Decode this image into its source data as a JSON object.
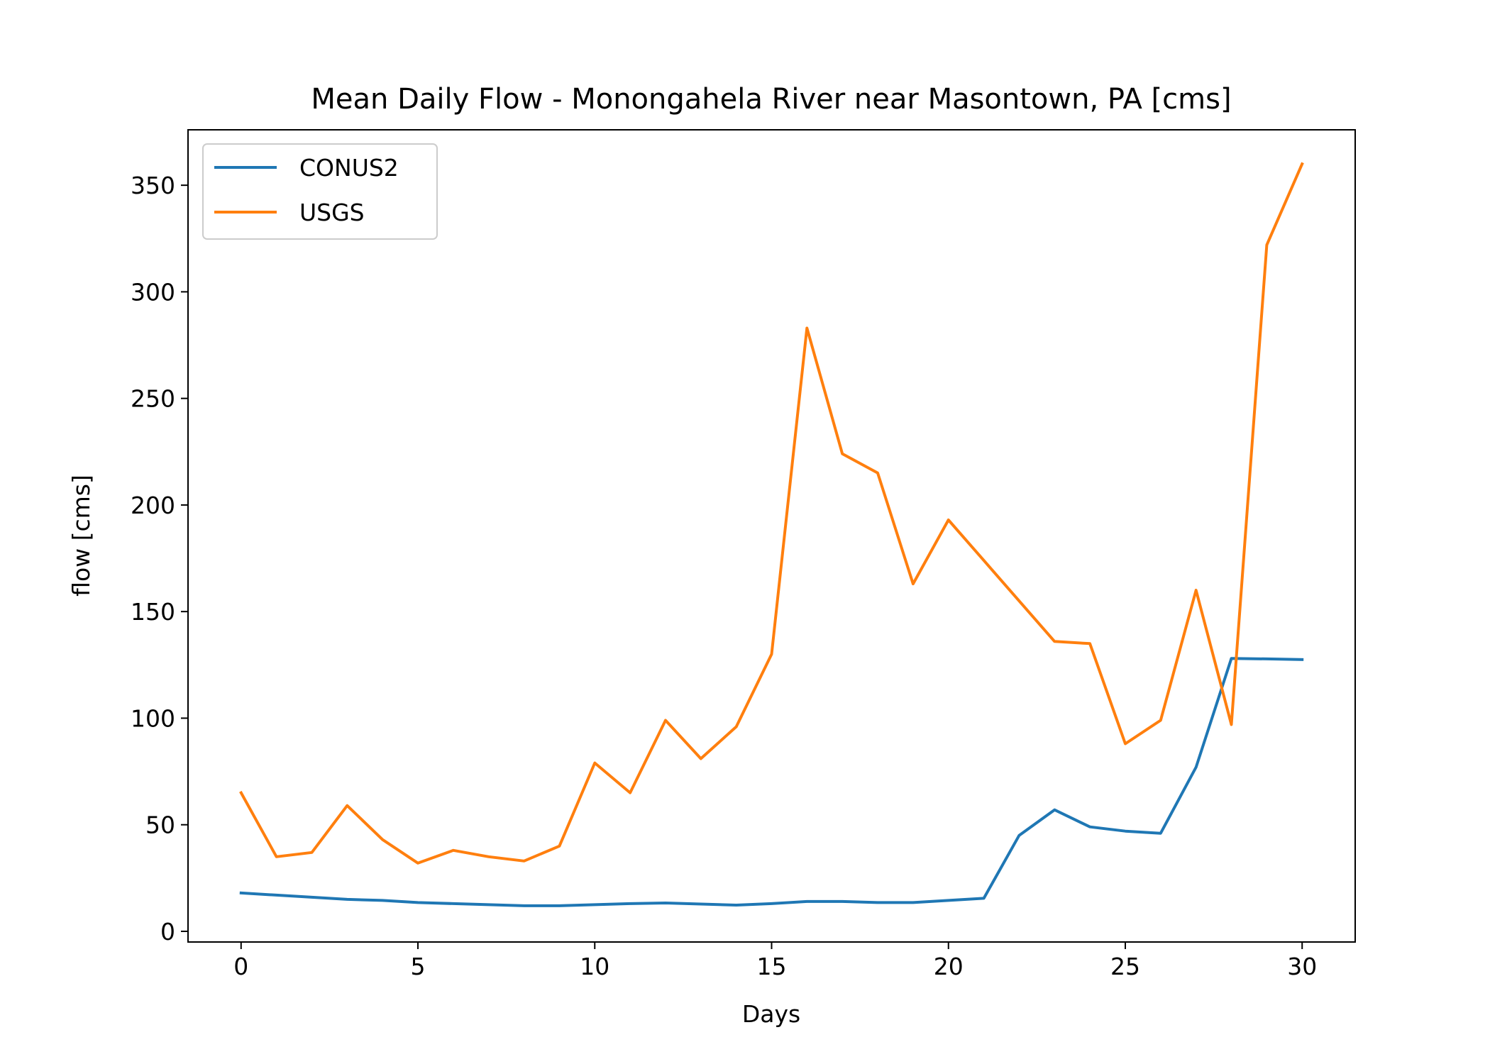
{
  "chart_data": {
    "type": "line",
    "title": "Mean Daily Flow - Monongahela River near Masontown, PA [cms]",
    "xlabel": "Days",
    "ylabel": "flow [cms]",
    "xlim": [
      -1.5,
      31.5
    ],
    "ylim": [
      -5,
      376
    ],
    "xticks": [
      0,
      5,
      10,
      15,
      20,
      25,
      30
    ],
    "yticks": [
      0,
      50,
      100,
      150,
      200,
      250,
      300,
      350
    ],
    "grid": false,
    "legend_position": "top-left",
    "x": [
      0,
      1,
      2,
      3,
      4,
      5,
      6,
      7,
      8,
      9,
      10,
      11,
      12,
      13,
      14,
      15,
      16,
      17,
      18,
      19,
      20,
      21,
      22,
      23,
      24,
      25,
      26,
      27,
      28,
      29,
      30
    ],
    "series": [
      {
        "name": "CONUS2",
        "color": "#1f77b4",
        "values": [
          18,
          17,
          16,
          15,
          14.5,
          13.5,
          13,
          12.5,
          12,
          12,
          12.5,
          13,
          13.3,
          12.8,
          12.3,
          13,
          14,
          14,
          13.5,
          13.5,
          14.5,
          15.5,
          45,
          57,
          49,
          47,
          46,
          77,
          128,
          127.8,
          127.5
        ]
      },
      {
        "name": "USGS",
        "color": "#ff7f0e",
        "values": [
          65,
          35,
          37,
          59,
          43,
          32,
          38,
          35,
          33,
          40,
          79,
          65,
          99,
          81,
          96,
          130,
          283,
          224,
          215,
          163,
          193,
          174,
          155,
          136,
          135,
          88,
          99,
          160,
          97,
          322,
          360
        ]
      }
    ]
  }
}
